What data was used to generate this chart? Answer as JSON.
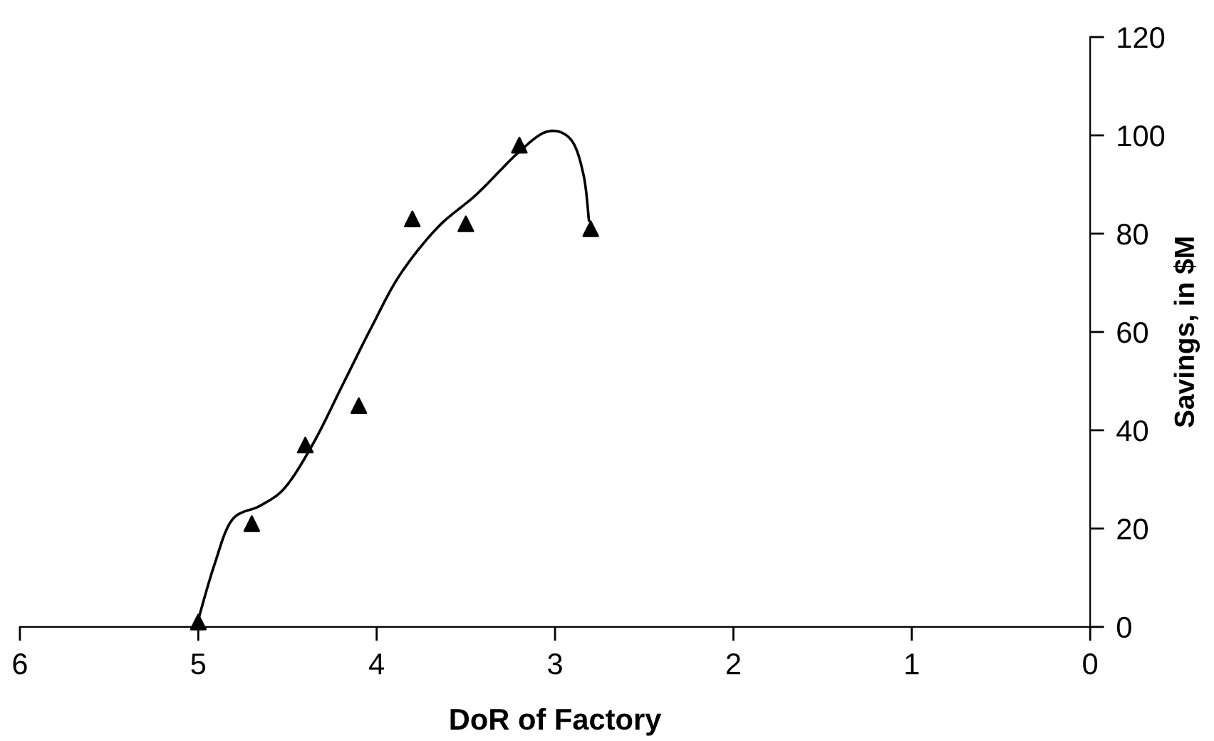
{
  "chart_data": {
    "type": "scatter",
    "xlabel": "DoR of Factory",
    "ylabel": "Savings, in $M",
    "xlim": [
      6,
      0
    ],
    "xticks": [
      6,
      5,
      4,
      3,
      2,
      1,
      0
    ],
    "ylim": [
      0,
      120
    ],
    "yticks": [
      0,
      20,
      40,
      60,
      80,
      100,
      120
    ],
    "grid": false,
    "legend": false,
    "marker": "triangle",
    "series": [
      {
        "color": "#000000",
        "x": [
          5.0,
          4.7,
          4.4,
          4.1,
          3.8,
          3.5,
          3.2,
          2.8
        ],
        "values": [
          1,
          21,
          37,
          45,
          83,
          82,
          98,
          81
        ]
      },
      {
        "type": "line",
        "color": "#000000",
        "marker": "none",
        "line_style": "solid",
        "x": [
          5.0,
          4.91,
          4.81,
          4.65,
          4.51,
          4.35,
          4.19,
          4.03,
          3.87,
          3.66,
          3.44,
          3.2,
          3.04,
          2.91,
          2.84,
          2.81
        ],
        "values": [
          1.5,
          12.6,
          21.8,
          24.7,
          28.5,
          37.7,
          49.3,
          60.9,
          71.6,
          81.2,
          88,
          96.7,
          100.8,
          99.1,
          91.9,
          82.7
        ]
      }
    ]
  }
}
